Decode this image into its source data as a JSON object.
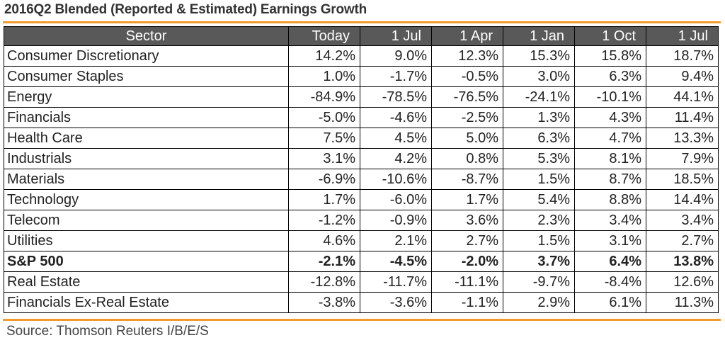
{
  "title": "2016Q2 Blended (Reported & Estimated) Earnings Growth",
  "source": "Source: Thomson Reuters I/B/E/S",
  "colors": {
    "accent_rule": "#f29a2e",
    "header_bg": "#595959",
    "header_text": "#ffffff"
  },
  "chart_data": {
    "type": "table",
    "title": "2016Q2 Blended (Reported & Estimated) Earnings Growth",
    "columns": [
      "Sector",
      "Today",
      "1 Jul",
      "1 Apr",
      "1 Jan",
      "1 Oct",
      "1 Jul"
    ],
    "rows": [
      {
        "sector": "Consumer Discretionary",
        "values": [
          "14.2%",
          "9.0%",
          "12.3%",
          "15.3%",
          "15.8%",
          "18.7%"
        ],
        "bold": false
      },
      {
        "sector": "Consumer Staples",
        "values": [
          "1.0%",
          "-1.7%",
          "-0.5%",
          "3.0%",
          "6.3%",
          "9.4%"
        ],
        "bold": false
      },
      {
        "sector": "Energy",
        "values": [
          "-84.9%",
          "-78.5%",
          "-76.5%",
          "-24.1%",
          "-10.1%",
          "44.1%"
        ],
        "bold": false
      },
      {
        "sector": "Financials",
        "values": [
          "-5.0%",
          "-4.6%",
          "-2.5%",
          "1.3%",
          "4.3%",
          "11.4%"
        ],
        "bold": false
      },
      {
        "sector": "Health Care",
        "values": [
          "7.5%",
          "4.5%",
          "5.0%",
          "6.3%",
          "4.7%",
          "13.3%"
        ],
        "bold": false
      },
      {
        "sector": "Industrials",
        "values": [
          "3.1%",
          "4.2%",
          "0.8%",
          "5.3%",
          "8.1%",
          "7.9%"
        ],
        "bold": false
      },
      {
        "sector": "Materials",
        "values": [
          "-6.9%",
          "-10.6%",
          "-8.7%",
          "1.5%",
          "8.7%",
          "18.5%"
        ],
        "bold": false
      },
      {
        "sector": "Technology",
        "values": [
          "1.7%",
          "-6.0%",
          "1.7%",
          "5.4%",
          "8.8%",
          "14.4%"
        ],
        "bold": false
      },
      {
        "sector": "Telecom",
        "values": [
          "-1.2%",
          "-0.9%",
          "3.6%",
          "2.3%",
          "3.4%",
          "3.4%"
        ],
        "bold": false
      },
      {
        "sector": "Utilities",
        "values": [
          "4.6%",
          "2.1%",
          "2.7%",
          "1.5%",
          "3.1%",
          "2.7%"
        ],
        "bold": false
      },
      {
        "sector": "S&P 500",
        "values": [
          "-2.1%",
          "-4.5%",
          "-2.0%",
          "3.7%",
          "6.4%",
          "13.8%"
        ],
        "bold": true
      },
      {
        "sector": "Real Estate",
        "values": [
          "-12.8%",
          "-11.7%",
          "-11.1%",
          "-9.7%",
          "-8.4%",
          "12.6%"
        ],
        "bold": false
      },
      {
        "sector": "Financials Ex-Real Estate",
        "values": [
          "-3.8%",
          "-3.6%",
          "-1.1%",
          "2.9%",
          "6.1%",
          "11.3%"
        ],
        "bold": false
      }
    ]
  }
}
